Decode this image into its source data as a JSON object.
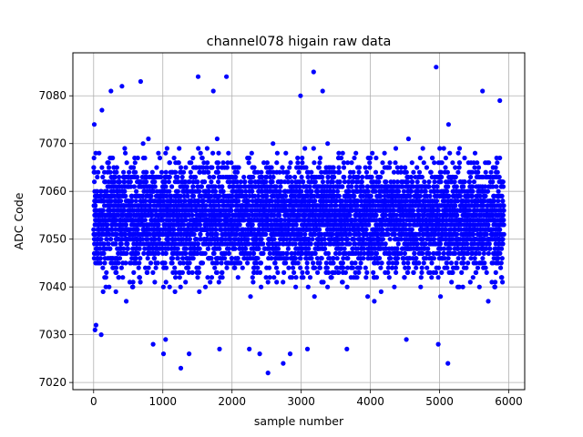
{
  "chart_data": {
    "type": "scatter",
    "title": "channel078 higain raw data",
    "xlabel": "sample number",
    "ylabel": "ADC Code",
    "xlim": [
      -300,
      6230
    ],
    "ylim": [
      7018.5,
      7089.0
    ],
    "xticks": [
      0,
      1000,
      2000,
      3000,
      4000,
      5000,
      6000
    ],
    "xtick_labels": [
      "0",
      "1000",
      "2000",
      "3000",
      "4000",
      "5000",
      "6000"
    ],
    "yticks": [
      7020,
      7030,
      7040,
      7050,
      7060,
      7070,
      7080
    ],
    "ytick_labels": [
      "7020",
      "7030",
      "7040",
      "7050",
      "7060",
      "7070",
      "7080"
    ],
    "grid": true,
    "marker_color": "#0000ff",
    "legend": null,
    "series": [
      {
        "x_range": [
          0,
          5930
        ],
        "n_points": 5931,
        "mean": 7054.5,
        "bulk_range": [
          7043,
          7066
        ],
        "outliers": [
          {
            "x": 10,
            "y": 7074
          },
          {
            "x": 20,
            "y": 7031
          },
          {
            "x": 35,
            "y": 7032
          },
          {
            "x": 110,
            "y": 7030
          },
          {
            "x": 120,
            "y": 7077
          },
          {
            "x": 250,
            "y": 7081
          },
          {
            "x": 410,
            "y": 7082
          },
          {
            "x": 680,
            "y": 7083
          },
          {
            "x": 860,
            "y": 7028
          },
          {
            "x": 1010,
            "y": 7026
          },
          {
            "x": 1040,
            "y": 7029
          },
          {
            "x": 1260,
            "y": 7023
          },
          {
            "x": 1380,
            "y": 7026
          },
          {
            "x": 1510,
            "y": 7084
          },
          {
            "x": 1730,
            "y": 7081
          },
          {
            "x": 1820,
            "y": 7027
          },
          {
            "x": 1920,
            "y": 7084
          },
          {
            "x": 2250,
            "y": 7027
          },
          {
            "x": 2400,
            "y": 7026
          },
          {
            "x": 2520,
            "y": 7022
          },
          {
            "x": 2740,
            "y": 7024
          },
          {
            "x": 2840,
            "y": 7026
          },
          {
            "x": 2990,
            "y": 7080
          },
          {
            "x": 3090,
            "y": 7027
          },
          {
            "x": 3180,
            "y": 7085
          },
          {
            "x": 3310,
            "y": 7081
          },
          {
            "x": 3660,
            "y": 7027
          },
          {
            "x": 4520,
            "y": 7029
          },
          {
            "x": 4950,
            "y": 7086
          },
          {
            "x": 4980,
            "y": 7028
          },
          {
            "x": 5120,
            "y": 7024
          },
          {
            "x": 5620,
            "y": 7081
          },
          {
            "x": 5870,
            "y": 7079
          }
        ]
      }
    ]
  }
}
